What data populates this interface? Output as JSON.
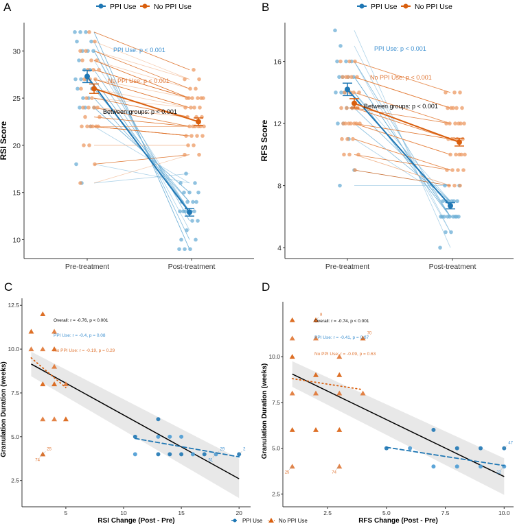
{
  "colors": {
    "ppi": "#1f77b4",
    "no_ppi": "#d95f0e",
    "ppi_light": "#6baed6",
    "no_ppi_light": "#ec9a63",
    "ci": "#e5e5e5",
    "overall": "#000000"
  },
  "chart_data": [
    {
      "panel": "A",
      "type": "line",
      "subtype": "paired-slope",
      "ylabel": "RSI Score",
      "xlabel": "",
      "categories": [
        "Pre-treatment",
        "Post-treatment"
      ],
      "ylim": [
        8,
        33
      ],
      "yticks": [
        10,
        15,
        20,
        25,
        30
      ],
      "legend": {
        "position": "top",
        "entries": [
          "PPI Use",
          "No PPI Use"
        ]
      },
      "series": [
        {
          "name": "PPI Use",
          "mean": [
            27.3,
            12.9
          ],
          "se": [
            0.65,
            0.4
          ],
          "pre": [
            32,
            32,
            32,
            31,
            31,
            30,
            30,
            30,
            29,
            28,
            28,
            27,
            27,
            27,
            26,
            26,
            25,
            25,
            24,
            24,
            24,
            22,
            18,
            16
          ],
          "post": [
            9,
            9,
            9,
            10,
            10,
            11,
            12,
            12,
            13,
            13,
            13,
            13,
            13,
            13,
            14,
            14,
            14,
            14,
            15,
            15,
            15,
            16,
            16,
            17
          ]
        },
        {
          "name": "No PPI Use",
          "mean": [
            26.0,
            22.5
          ],
          "se": [
            0.5,
            0.4
          ],
          "pre": [
            32,
            31,
            30,
            30,
            29,
            29,
            29,
            28,
            28,
            28,
            27,
            27,
            27,
            26,
            25,
            25,
            24,
            24,
            24,
            24,
            23,
            23,
            22,
            22,
            22,
            22,
            22,
            22,
            20,
            20,
            18,
            16
          ],
          "post": [
            28,
            27,
            27,
            26,
            26,
            25,
            25,
            25,
            25,
            25,
            25,
            24,
            24,
            24,
            24,
            23,
            23,
            23,
            22,
            22,
            22,
            22,
            22,
            22,
            21,
            21,
            21,
            21,
            20,
            20,
            19,
            19
          ]
        }
      ],
      "annotations": [
        {
          "text": "PPI Use: p < 0.001",
          "group": "ppi"
        },
        {
          "text": "No PPI Use: p < 0.001",
          "group": "no_ppi"
        },
        {
          "text": "Between groups: p < 0.001",
          "group": "overall"
        }
      ]
    },
    {
      "panel": "B",
      "type": "line",
      "subtype": "paired-slope",
      "ylabel": "RFS Score",
      "xlabel": "",
      "categories": [
        "Pre-treatment",
        "Post-treatment"
      ],
      "ylim": [
        3.3,
        18.5
      ],
      "yticks": [
        4,
        8,
        12,
        16
      ],
      "legend": {
        "position": "top",
        "entries": [
          "PPI Use",
          "No PPI Use"
        ]
      },
      "series": [
        {
          "name": "PPI Use",
          "mean": [
            14.2,
            6.7
          ],
          "se": [
            0.4,
            0.2
          ],
          "pre": [
            18,
            17,
            16,
            16,
            16,
            15,
            15,
            15,
            15,
            14,
            14,
            14,
            14,
            13,
            13,
            12,
            12,
            11,
            9,
            8
          ],
          "post": [
            4,
            5,
            5,
            6,
            6,
            6,
            6,
            6,
            6,
            6,
            6,
            6,
            7,
            7,
            7,
            7,
            7,
            7,
            8,
            8
          ]
        },
        {
          "name": "No PPI Use",
          "mean": [
            13.3,
            10.8
          ],
          "se": [
            0.3,
            0.25
          ],
          "pre": [
            16,
            16,
            16,
            15,
            15,
            15,
            15,
            15,
            14,
            14,
            14,
            14,
            13,
            13,
            13,
            13,
            13,
            12,
            12,
            12,
            12,
            12,
            12,
            12,
            11,
            11,
            11,
            10,
            10,
            10,
            9
          ],
          "post": [
            14,
            14,
            14,
            13,
            13,
            13,
            13,
            13,
            12,
            12,
            12,
            12,
            12,
            12,
            11,
            11,
            11,
            11,
            11,
            10,
            10,
            10,
            10,
            10,
            9,
            9,
            9,
            9,
            8,
            8,
            8
          ]
        }
      ],
      "annotations": [
        {
          "text": "PPI Use: p < 0.001",
          "group": "ppi"
        },
        {
          "text": "No PPI Use: p < 0.001",
          "group": "no_ppi"
        },
        {
          "text": "Between groups: p < 0.001",
          "group": "overall"
        }
      ]
    },
    {
      "panel": "C",
      "type": "scatter",
      "xlabel": "RSI Change (Post - Pre)",
      "ylabel": "Granulation Duration (weeks)",
      "xlim": [
        1.2,
        21
      ],
      "ylim": [
        1,
        12.9
      ],
      "xticks": [
        5,
        10,
        15,
        20
      ],
      "yticks": [
        2.5,
        5.0,
        7.5,
        10.0,
        12.5
      ],
      "legend": {
        "position": "bottom",
        "entries": [
          "PPI Use",
          "No PPI Use"
        ]
      },
      "series": [
        {
          "name": "PPI Use",
          "marker": "circle",
          "points": [
            [
              11,
              5
            ],
            [
              11,
              4
            ],
            [
              13,
              6
            ],
            [
              13,
              5
            ],
            [
              13,
              4
            ],
            [
              14,
              5
            ],
            [
              14,
              4
            ],
            [
              15,
              5
            ],
            [
              15,
              4
            ],
            [
              16,
              4
            ],
            [
              17,
              4
            ],
            [
              18,
              4
            ],
            [
              20,
              4
            ]
          ],
          "trend": {
            "style": "dashed",
            "from": [
              11,
              4.9
            ],
            "to": [
              20,
              3.85
            ]
          }
        },
        {
          "name": "No PPI Use",
          "marker": "triangle",
          "points": [
            [
              2,
              11
            ],
            [
              2,
              10
            ],
            [
              3,
              12
            ],
            [
              3,
              10
            ],
            [
              3,
              8
            ],
            [
              3,
              6
            ],
            [
              3,
              4
            ],
            [
              4,
              11
            ],
            [
              4,
              10
            ],
            [
              4,
              9
            ],
            [
              4,
              8
            ],
            [
              4,
              6
            ],
            [
              5,
              6
            ],
            [
              5,
              8
            ]
          ],
          "trend": {
            "style": "dotted",
            "from": [
              2,
              9.5
            ],
            "to": [
              5,
              7.8
            ]
          }
        }
      ],
      "overall_fit": {
        "from": [
          2,
          9.15
        ],
        "to": [
          20,
          2.6
        ],
        "ci_from": [
          8.45,
          9.85
        ],
        "ci_to": [
          1.5,
          3.75
        ]
      },
      "point_labels": [
        {
          "text": "25",
          "x": 3,
          "y": 4,
          "group": "no_ppi"
        },
        {
          "text": "74",
          "x": 3,
          "y": 4,
          "group": "no_ppi"
        },
        {
          "text": "29",
          "x": 18,
          "y": 4,
          "group": "ppi"
        },
        {
          "text": "51",
          "x": 18,
          "y": 4,
          "group": "ppi"
        },
        {
          "text": "2",
          "x": 20,
          "y": 4,
          "group": "ppi"
        }
      ],
      "annotations": [
        {
          "text": "Overall: r = -0.76, p < 0.001",
          "group": "overall"
        },
        {
          "text": "PPI Use: r = -0.4, p = 0.08",
          "group": "ppi"
        },
        {
          "text": "No PPI Use: r = -0.19, p = 0.29",
          "group": "no_ppi"
        }
      ]
    },
    {
      "panel": "D",
      "type": "scatter",
      "xlabel": "RFS Change (Post - Pre)",
      "ylabel": "Granulation Duration (weeks)",
      "xlim": [
        0.6,
        10.4
      ],
      "ylim": [
        1.8,
        13
      ],
      "xticks": [
        2.5,
        5.0,
        7.5,
        10.0
      ],
      "yticks": [
        2.5,
        5.0,
        7.5,
        10.0
      ],
      "legend": {
        "position": "bottom",
        "entries": [
          "PPI Use",
          "No PPI Use"
        ]
      },
      "series": [
        {
          "name": "PPI Use",
          "marker": "circle",
          "points": [
            [
              5,
              5
            ],
            [
              6,
              5
            ],
            [
              7,
              6
            ],
            [
              7,
              4
            ],
            [
              8,
              5
            ],
            [
              8,
              4
            ],
            [
              9,
              5
            ],
            [
              9,
              4
            ],
            [
              10,
              5
            ],
            [
              10,
              4
            ]
          ],
          "trend": {
            "style": "dashed",
            "from": [
              5,
              5.05
            ],
            "to": [
              10,
              4.05
            ]
          }
        },
        {
          "name": "No PPI Use",
          "marker": "triangle",
          "points": [
            [
              1,
              12
            ],
            [
              1,
              11
            ],
            [
              1,
              10
            ],
            [
              1,
              8
            ],
            [
              1,
              6
            ],
            [
              1,
              4
            ],
            [
              2,
              12
            ],
            [
              2,
              11
            ],
            [
              2,
              9
            ],
            [
              2,
              8
            ],
            [
              2,
              6
            ],
            [
              3,
              10
            ],
            [
              3,
              9
            ],
            [
              3,
              8
            ],
            [
              3,
              6
            ],
            [
              3,
              4
            ],
            [
              4,
              11
            ],
            [
              4,
              8
            ]
          ],
          "trend": {
            "style": "dotted",
            "from": [
              1,
              8.8
            ],
            "to": [
              4,
              8.2
            ]
          }
        }
      ],
      "overall_fit": {
        "from": [
          1,
          9.05
        ],
        "to": [
          10,
          3.45
        ],
        "ci_from": [
          8.35,
          9.75
        ],
        "ci_to": [
          2.45,
          4.45
        ]
      },
      "point_labels": [
        {
          "text": "8",
          "x": 2,
          "y": 12,
          "group": "no_ppi"
        },
        {
          "text": "70",
          "x": 4,
          "y": 11,
          "group": "no_ppi"
        },
        {
          "text": "25",
          "x": 1,
          "y": 4,
          "group": "no_ppi"
        },
        {
          "text": "74",
          "x": 3,
          "y": 4,
          "group": "no_ppi"
        },
        {
          "text": "47",
          "x": 10,
          "y": 5,
          "group": "ppi"
        },
        {
          "text": "22",
          "x": 10,
          "y": 4,
          "group": "ppi"
        }
      ],
      "annotations": [
        {
          "text": "Overall: r = -0.74, p < 0.001",
          "group": "overall"
        },
        {
          "text": "PPI Use: r = -0.41, p = 0.07",
          "group": "ppi"
        },
        {
          "text": "No PPI Use: r = -0.09, p = 0.63",
          "group": "no_ppi"
        }
      ]
    }
  ]
}
